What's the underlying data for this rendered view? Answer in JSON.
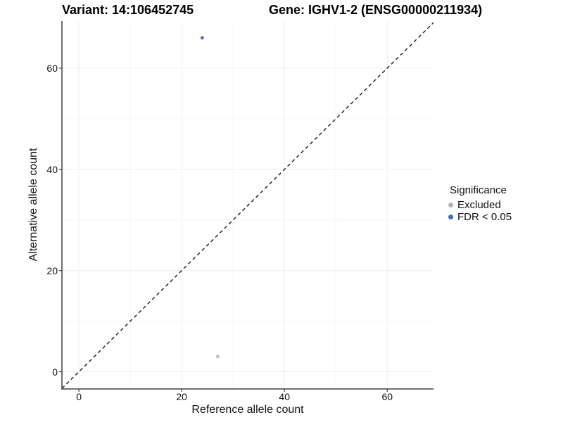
{
  "chart_data": {
    "type": "scatter",
    "titles": {
      "left": "Variant: 14:106452745",
      "right": "Gene: IGHV1-2 (ENSG00000211934)"
    },
    "xlabel": "Reference allele count",
    "ylabel": "Alternative allele count",
    "xlim": [
      -3.3,
      69.0
    ],
    "ylim": [
      -3.4,
      69.3
    ],
    "x_major_ticks": [
      0,
      20,
      40,
      60
    ],
    "x_minor_ticks": [
      10,
      30,
      50
    ],
    "y_major_ticks": [
      0,
      20,
      40,
      60
    ],
    "y_minor_ticks": [
      10,
      30,
      50
    ],
    "grid": true,
    "reference_line": {
      "style": "dashed",
      "slope": 1,
      "intercept": 0,
      "color": "#1a1a1a"
    },
    "series": [
      {
        "name": "Excluded",
        "color": "#c2c2c2",
        "point_radius": 2.5,
        "points": [
          {
            "x": 27,
            "y": 3
          }
        ]
      },
      {
        "name": "FDR < 0.05",
        "color": "#4878b0",
        "point_radius": 2.5,
        "points": [
          {
            "x": 24,
            "y": 66
          }
        ]
      }
    ],
    "legend": {
      "title": "Significance",
      "position": "right",
      "entries": [
        {
          "label": "Excluded",
          "color": "#b3b3b3"
        },
        {
          "label": "FDR < 0.05",
          "color": "#3d6fb6"
        }
      ]
    },
    "colors": {
      "grid_major": "#efefef",
      "grid_minor": "#f6f6f6",
      "axis_line": "#404040",
      "background": "#ffffff"
    }
  }
}
